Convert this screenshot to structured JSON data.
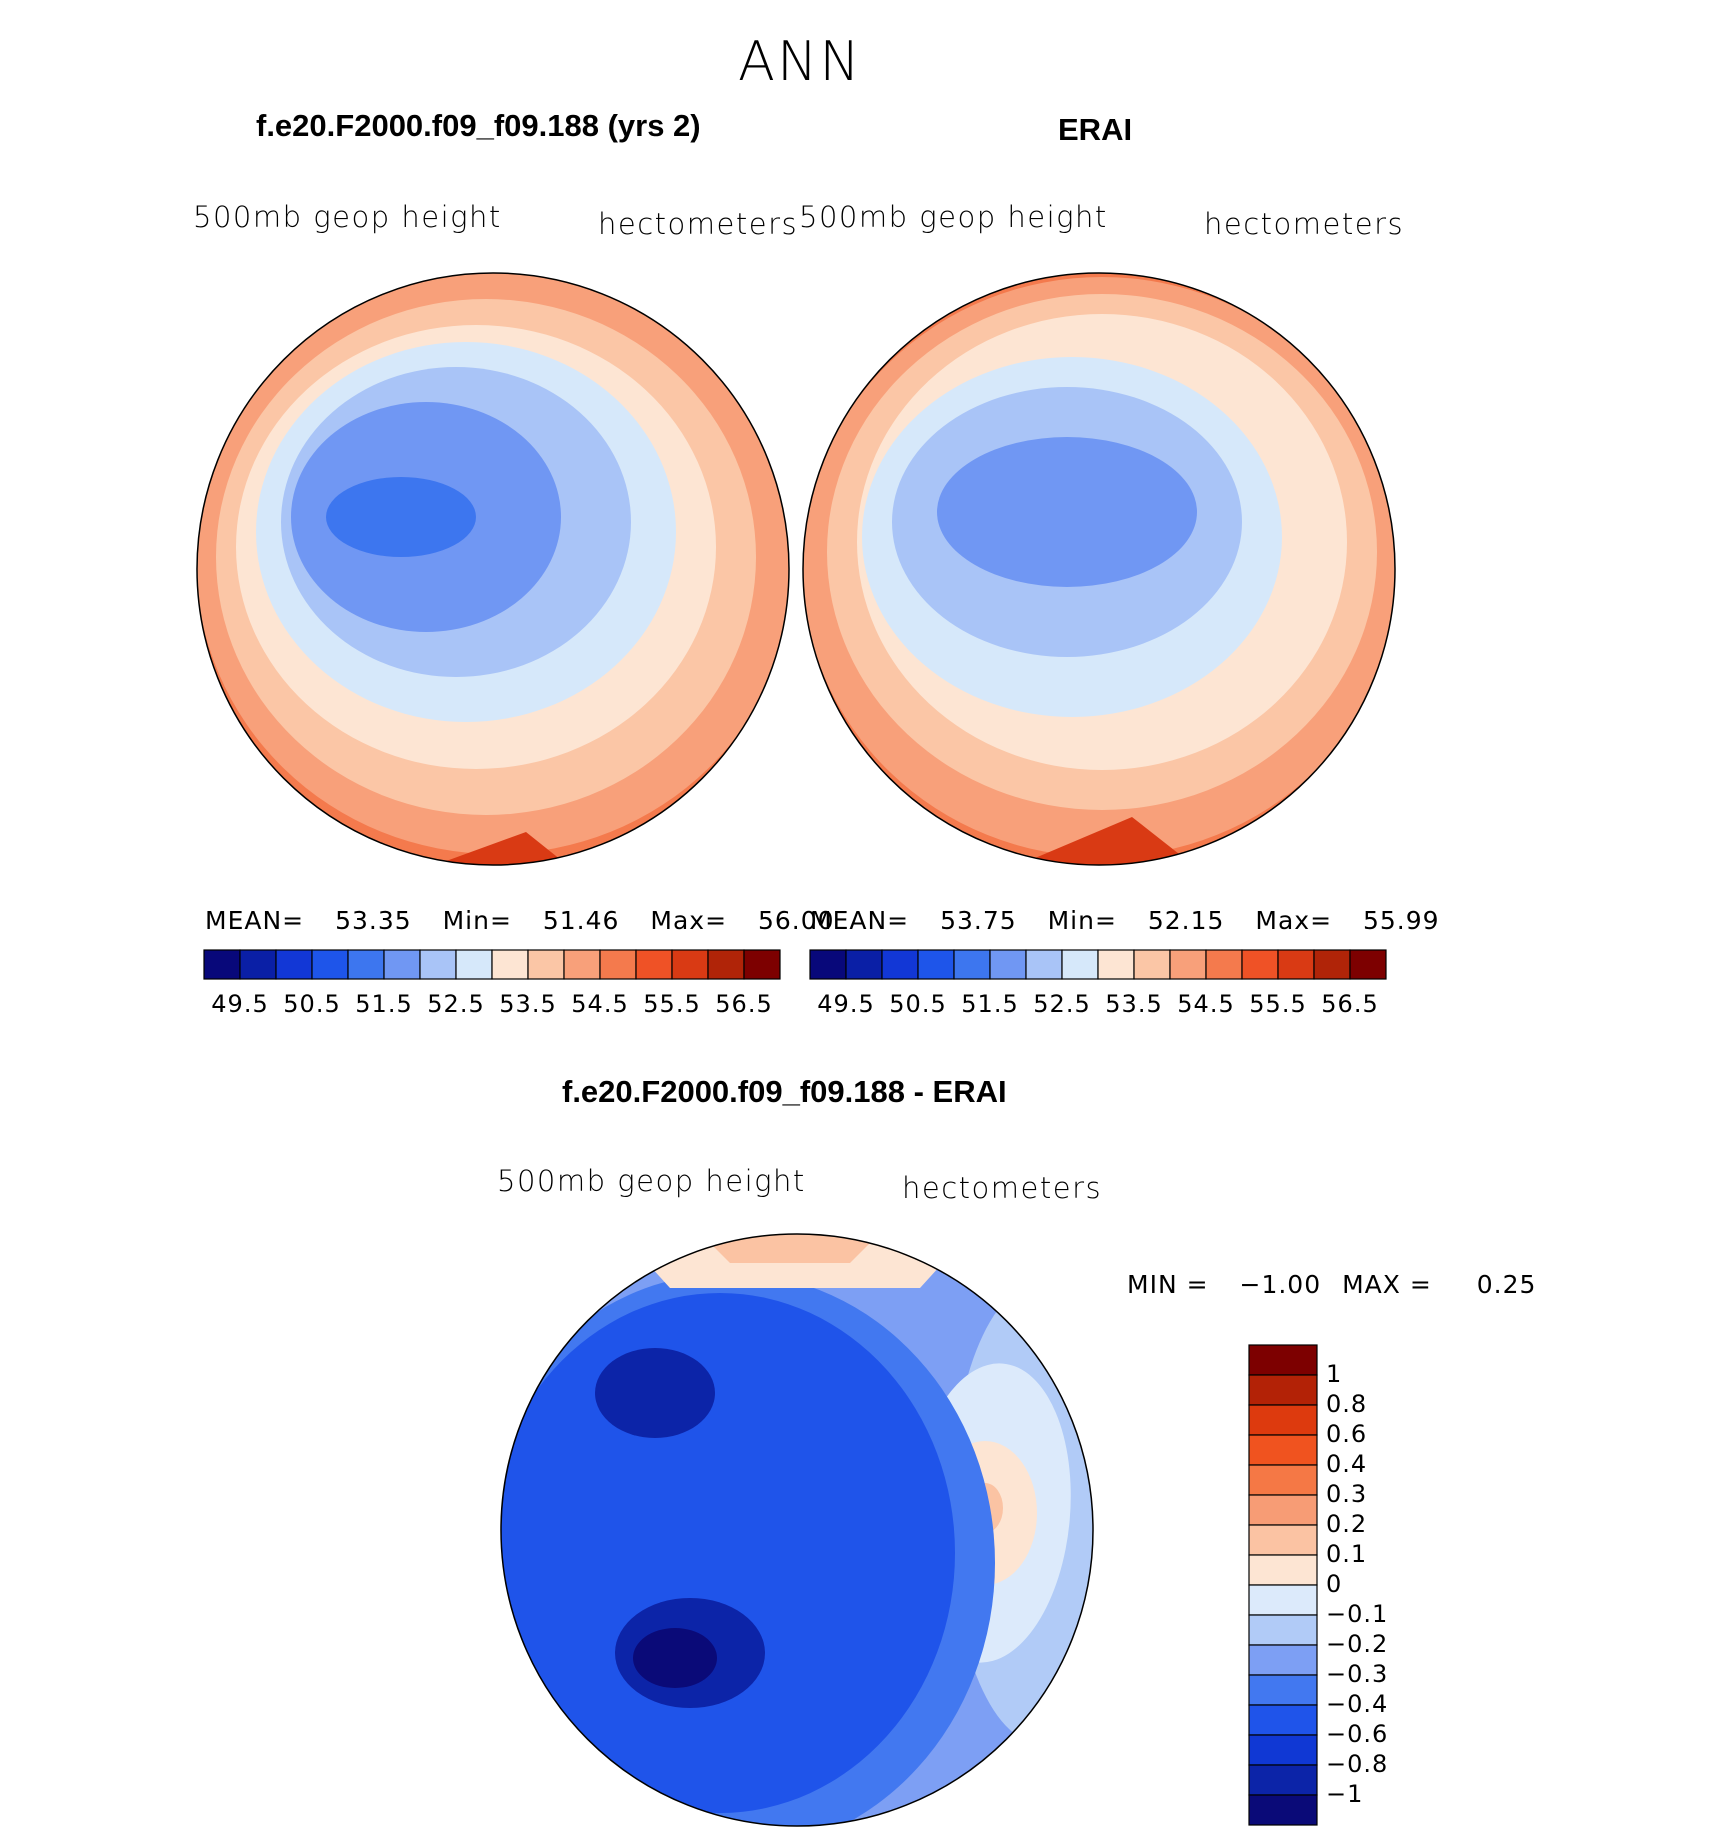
{
  "page_title": "ANN",
  "colors": {
    "abs_scale": [
      "#08087a",
      "#0a1fa6",
      "#1237d6",
      "#1e55ea",
      "#3d76ef",
      "#7097f3",
      "#a9c4f7",
      "#d6e8fa",
      "#fde5d3",
      "#fbc6a6",
      "#f8a07a",
      "#f47a4d",
      "#ef5226",
      "#d93a14",
      "#b02408",
      "#7d0000"
    ],
    "diff_scale": [
      "#0a0a78",
      "#0c24a8",
      "#1038d4",
      "#1f54ea",
      "#4278f0",
      "#7d9ff4",
      "#b1cbf7",
      "#dceafb",
      "#fde5d3",
      "#fbc3a3",
      "#f79c75",
      "#f57845",
      "#f0531f",
      "#dd3a0e",
      "#b32206",
      "#7d0000"
    ]
  },
  "chart_data": [
    {
      "type": "heatmap",
      "projection": "north-polar-stereographic",
      "title": "f.e20.F2000.f09_f09.188 (yrs 2)",
      "left_label": "500mb geop height",
      "right_label": "hectometers",
      "stats": {
        "mean_label": "MEAN=",
        "mean": "53.35",
        "min_label": "Min=",
        "min": "51.46",
        "max_label": "Max=",
        "max": "56.00"
      },
      "levels": [
        49.5,
        50,
        50.5,
        51,
        51.5,
        52,
        52.5,
        53,
        53.5,
        54,
        54.5,
        55,
        55.5,
        56,
        56.5
      ],
      "tick_labels": [
        "49.5",
        "50.5",
        "51.5",
        "52.5",
        "53.5",
        "54.5",
        "55.5",
        "56.5"
      ]
    },
    {
      "type": "heatmap",
      "projection": "north-polar-stereographic",
      "title": "ERAI",
      "left_label": "500mb geop height",
      "right_label": "hectometers",
      "stats": {
        "mean_label": "MEAN=",
        "mean": "53.75",
        "min_label": "Min=",
        "min": "52.15",
        "max_label": "Max=",
        "max": "55.99"
      },
      "levels": [
        49.5,
        50,
        50.5,
        51,
        51.5,
        52,
        52.5,
        53,
        53.5,
        54,
        54.5,
        55,
        55.5,
        56,
        56.5
      ],
      "tick_labels": [
        "49.5",
        "50.5",
        "51.5",
        "52.5",
        "53.5",
        "54.5",
        "55.5",
        "56.5"
      ]
    },
    {
      "type": "heatmap",
      "projection": "north-polar-stereographic",
      "title": "f.e20.F2000.f09_f09.188 - ERAI",
      "left_label": "500mb geop height",
      "right_label": "hectometers",
      "stats": {
        "min_label": "MIN =",
        "min": "−1.00",
        "max_label": "MAX =",
        "max": "0.25"
      },
      "levels": [
        -1,
        -0.8,
        -0.6,
        -0.4,
        -0.3,
        -0.2,
        -0.1,
        0,
        0.1,
        0.2,
        0.3,
        0.4,
        0.6,
        0.8,
        1
      ],
      "tick_labels": [
        "1",
        "0.8",
        "0.6",
        "0.4",
        "0.3",
        "0.2",
        "0.1",
        "0",
        "−0.1",
        "−0.2",
        "−0.3",
        "−0.4",
        "−0.6",
        "−0.8",
        "−1"
      ]
    }
  ]
}
